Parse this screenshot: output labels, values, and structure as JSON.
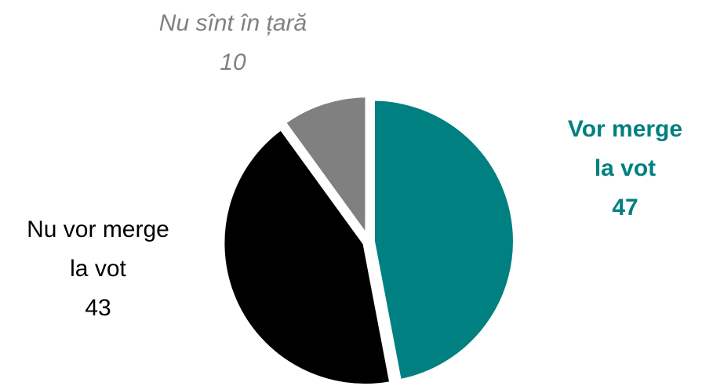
{
  "chart_data": {
    "type": "pie",
    "categories": [
      "Vor merge la vot",
      "Nu vor merge la vot",
      "Nu sînt în țară"
    ],
    "values": [
      47,
      43,
      10
    ],
    "colors": [
      "#008080",
      "#000000",
      "#808080"
    ]
  }
}
